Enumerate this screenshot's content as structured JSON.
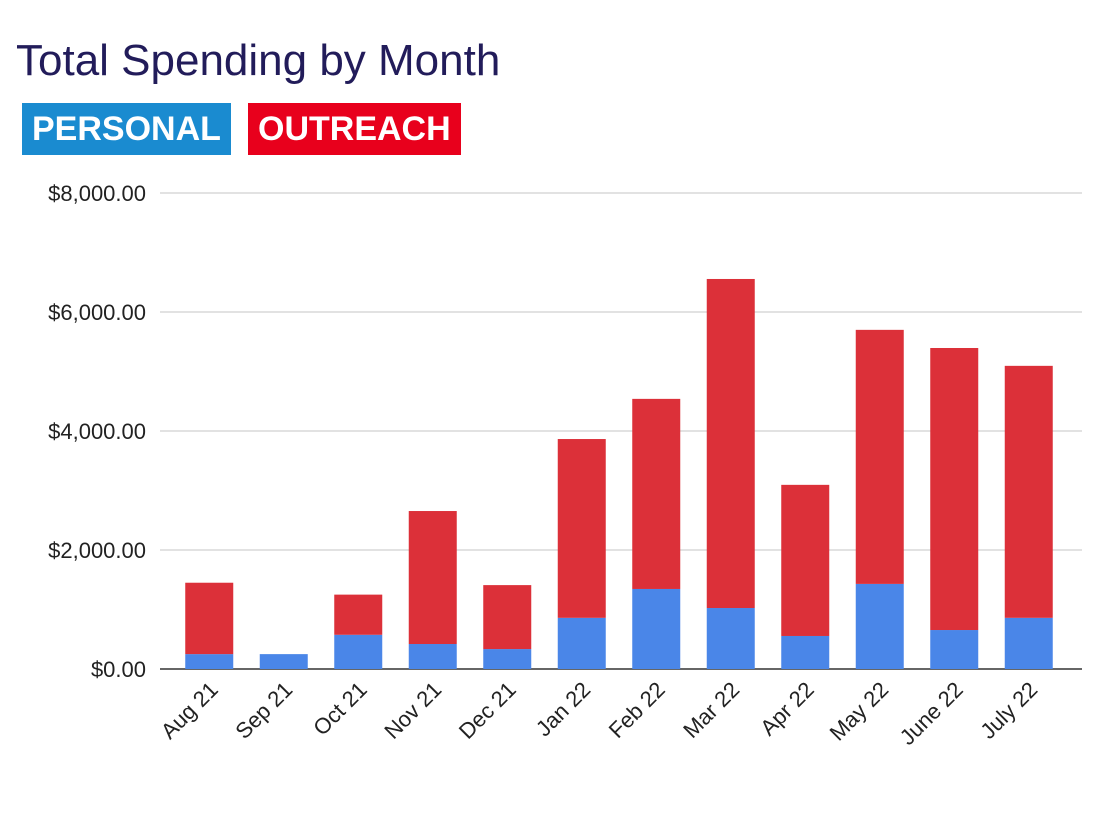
{
  "chart_data": {
    "type": "bar",
    "stacked": true,
    "title": "Total Spending by Month",
    "xlabel": "",
    "ylabel": "",
    "ylim": [
      0,
      8000
    ],
    "yticks": [
      "$0.00",
      "$2,000.00",
      "$4,000.00",
      "$6,000.00",
      "$8,000.00"
    ],
    "ytick_values": [
      0,
      2000,
      4000,
      6000,
      8000
    ],
    "grid": true,
    "legend_position": "top-left",
    "categories": [
      "Aug 21",
      "Sep 21",
      "Oct 21",
      "Nov 21",
      "Dec 21",
      "Jan 22",
      "Feb 22",
      "Mar 22",
      "Apr 22",
      "May 22",
      "June 22",
      "July 22"
    ],
    "series": [
      {
        "name": "PERSONAL",
        "color": "#4a86e8",
        "legend_color": "#1a8bd0",
        "values": [
          250,
          250,
          575,
          420,
          335,
          860,
          1345,
          1025,
          555,
          1430,
          655,
          860
        ]
      },
      {
        "name": "OUTREACH",
        "color": "#dc3039",
        "legend_color": "#e8001c",
        "values": [
          1200,
          0,
          675,
          2235,
          1075,
          3005,
          3195,
          5530,
          2540,
          4270,
          4740,
          4235
        ]
      }
    ]
  }
}
